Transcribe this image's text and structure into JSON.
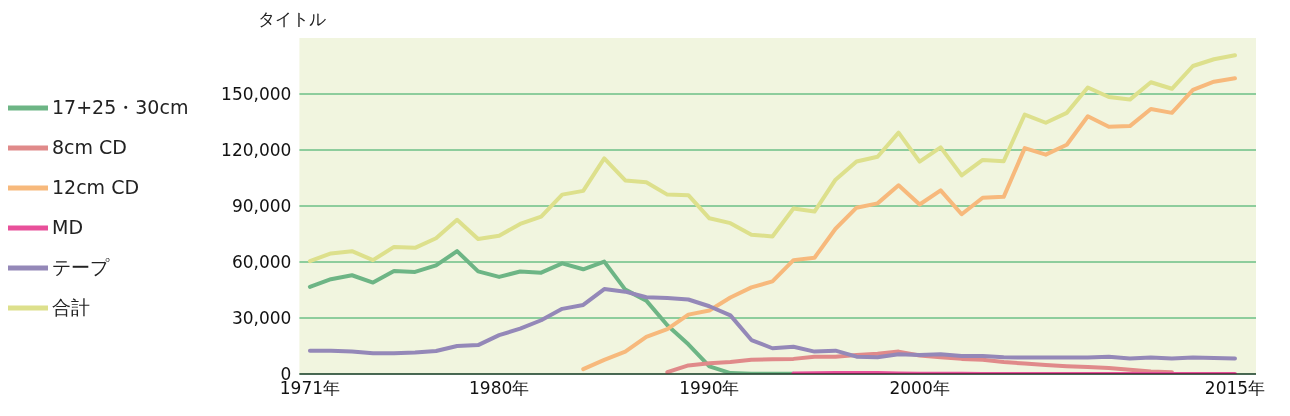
{
  "chart_data": {
    "type": "line",
    "ylabel": "タイトル",
    "x": [
      1971,
      1972,
      1973,
      1974,
      1975,
      1976,
      1977,
      1978,
      1979,
      1980,
      1981,
      1982,
      1983,
      1984,
      1985,
      1986,
      1987,
      1988,
      1989,
      1990,
      1991,
      1992,
      1993,
      1994,
      1995,
      1996,
      1997,
      1998,
      1999,
      2000,
      2001,
      2002,
      2003,
      2004,
      2005,
      2006,
      2007,
      2008,
      2009,
      2010,
      2011,
      2012,
      2013,
      2014,
      2015
    ],
    "series": [
      {
        "name": "17+25・30cm",
        "color": "#6db585",
        "values": [
          46700,
          50800,
          52900,
          49000,
          55200,
          54700,
          58200,
          65800,
          55000,
          52000,
          54900,
          54300,
          59300,
          56100,
          60200,
          45200,
          39300,
          26100,
          15900,
          4100,
          500,
          200,
          200,
          200,
          null,
          null,
          null,
          null,
          null,
          null,
          null,
          null,
          null,
          null,
          null,
          null,
          null,
          null,
          null,
          null,
          null,
          null,
          null,
          null,
          null
        ]
      },
      {
        "name": "8cm CD",
        "color": "#e08a8a",
        "values": [
          null,
          null,
          null,
          null,
          null,
          null,
          null,
          null,
          null,
          null,
          null,
          null,
          null,
          null,
          null,
          null,
          null,
          1000,
          4600,
          5800,
          6400,
          7600,
          7900,
          8100,
          9300,
          9300,
          10200,
          10800,
          12000,
          9900,
          9000,
          8100,
          7600,
          6400,
          5600,
          4800,
          4200,
          3700,
          3200,
          2300,
          1400,
          1000,
          null,
          null,
          null
        ]
      },
      {
        "name": "12cm CD",
        "color": "#f7b97c",
        "values": [
          null,
          null,
          null,
          null,
          null,
          null,
          null,
          null,
          null,
          null,
          null,
          null,
          null,
          2600,
          7600,
          12000,
          19900,
          24000,
          31800,
          34000,
          41000,
          46400,
          49600,
          61000,
          62300,
          77800,
          89100,
          91400,
          101100,
          90800,
          98400,
          85600,
          94400,
          94900,
          121000,
          117500,
          122800,
          138100,
          132500,
          132800,
          142000,
          139900,
          152200,
          156600,
          158400
        ]
      },
      {
        "name": "MD",
        "color": "#e8509a",
        "values": [
          null,
          null,
          null,
          null,
          null,
          null,
          null,
          null,
          null,
          null,
          null,
          null,
          null,
          null,
          null,
          null,
          null,
          null,
          null,
          null,
          null,
          null,
          null,
          300,
          400,
          500,
          600,
          500,
          300,
          200,
          100,
          100,
          0,
          0,
          0,
          0,
          0,
          0,
          0,
          0,
          0,
          0,
          0,
          0,
          0
        ]
      },
      {
        "name": "テープ",
        "color": "#9488b8",
        "values": [
          12500,
          12500,
          12000,
          11100,
          11100,
          11500,
          12300,
          15000,
          15500,
          20800,
          24300,
          28800,
          34900,
          37000,
          45500,
          44100,
          41100,
          40700,
          39900,
          36300,
          31400,
          18200,
          13800,
          14600,
          12000,
          12500,
          9300,
          9000,
          10600,
          10200,
          10600,
          9700,
          9700,
          9000,
          8800,
          8800,
          8800,
          8800,
          9200,
          8300,
          8800,
          8300,
          8800,
          8600,
          8300
        ]
      },
      {
        "name": "合計",
        "color": "#dde08c",
        "values": [
          60500,
          64600,
          65800,
          61000,
          68100,
          67600,
          72700,
          82600,
          72300,
          74100,
          80400,
          84300,
          96100,
          98100,
          115500,
          103700,
          102700,
          96100,
          95800,
          83400,
          80800,
          74600,
          73700,
          88700,
          87000,
          104100,
          113800,
          116400,
          129300,
          113800,
          121400,
          106400,
          114700,
          114000,
          139000,
          134600,
          139900,
          153500,
          148400,
          147000,
          156300,
          152800,
          165000,
          168600,
          170800
        ]
      }
    ],
    "xlim": [
      1970.5,
      2016
    ],
    "xticks": [
      {
        "value": 1971,
        "label": "1971年"
      },
      {
        "value": 1980,
        "label": "1980年"
      },
      {
        "value": 1990,
        "label": "1990年"
      },
      {
        "value": 2000,
        "label": "2000年"
      },
      {
        "value": 2015,
        "label": "2015年"
      }
    ],
    "ylim": [
      0,
      180000
    ],
    "yticks": [
      0,
      {
        "value": 30000,
        "label": "30,000"
      },
      {
        "value": 60000,
        "label": "60,000"
      },
      {
        "value": 90000,
        "label": "90,000"
      },
      {
        "value": 120000,
        "label": "120,000"
      },
      {
        "value": 150000,
        "label": "150,000"
      }
    ],
    "grid": "y",
    "legend": "left",
    "marker": "none",
    "line_style": "solid"
  }
}
